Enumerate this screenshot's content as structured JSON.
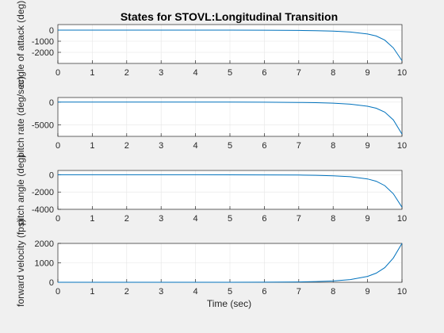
{
  "figure": {
    "title": "States for STOVL:Longitudinal Transition",
    "xlabel": "Time (sec)",
    "background_color": "#f0f0f0",
    "axes_color": "#ffffff",
    "line_color": "#0072bd"
  },
  "chart_data": [
    {
      "type": "line",
      "title": "States for STOVL:Longitudinal Transition",
      "xlabel": "",
      "ylabel": "angle of attack (deg)",
      "xlim": [
        0,
        10
      ],
      "ylim": [
        -3000,
        500
      ],
      "xticks": [
        "0",
        "1",
        "2",
        "3",
        "4",
        "5",
        "6",
        "7",
        "8",
        "9",
        "10"
      ],
      "yticks": [
        {
          "v": 0,
          "label": "0"
        },
        {
          "v": -1000,
          "label": "-1000"
        },
        {
          "v": -2000,
          "label": "-2000"
        }
      ],
      "grid": true,
      "series": [
        {
          "x": [
            0,
            1,
            2,
            3,
            4,
            5,
            6,
            7,
            7.5,
            8,
            8.5,
            9,
            9.25,
            9.5,
            9.75,
            10
          ],
          "y": [
            0,
            0,
            0,
            0,
            0,
            -2,
            -8,
            -25,
            -50,
            -90,
            -170,
            -350,
            -530,
            -900,
            -1600,
            -2750
          ]
        }
      ]
    },
    {
      "type": "line",
      "xlabel": "",
      "ylabel": "pitch rate (deg/sec)",
      "xlim": [
        0,
        10
      ],
      "ylim": [
        -7500,
        1000
      ],
      "xticks": [
        "0",
        "1",
        "2",
        "3",
        "4",
        "5",
        "6",
        "7",
        "8",
        "9",
        "10"
      ],
      "yticks": [
        {
          "v": 0,
          "label": "0"
        },
        {
          "v": -5000,
          "label": "-5000"
        }
      ],
      "grid": true,
      "series": [
        {
          "x": [
            0,
            1,
            2,
            3,
            4,
            5,
            6,
            7,
            7.5,
            8,
            8.5,
            9,
            9.25,
            9.5,
            9.75,
            10
          ],
          "y": [
            0,
            0,
            0,
            0,
            0,
            -5,
            -20,
            -70,
            -130,
            -240,
            -450,
            -900,
            -1350,
            -2200,
            -3900,
            -7000
          ]
        }
      ]
    },
    {
      "type": "line",
      "xlabel": "",
      "ylabel": "pitch angle (deg)",
      "xlim": [
        0,
        10
      ],
      "ylim": [
        -4000,
        500
      ],
      "xticks": [
        "0",
        "1",
        "2",
        "3",
        "4",
        "5",
        "6",
        "7",
        "8",
        "9",
        "10"
      ],
      "yticks": [
        {
          "v": 0,
          "label": "0"
        },
        {
          "v": -2000,
          "label": "-2000"
        },
        {
          "v": -4000,
          "label": "-4000"
        }
      ],
      "grid": true,
      "series": [
        {
          "x": [
            0,
            1,
            2,
            3,
            4,
            5,
            6,
            7,
            7.5,
            8,
            8.5,
            9,
            9.25,
            9.5,
            9.75,
            10
          ],
          "y": [
            0,
            0,
            0,
            0,
            0,
            -3,
            -10,
            -30,
            -60,
            -120,
            -230,
            -480,
            -750,
            -1250,
            -2200,
            -3750
          ]
        }
      ]
    },
    {
      "type": "line",
      "xlabel": "Time (sec)",
      "ylabel": "forward velocity (fps)",
      "xlim": [
        0,
        10
      ],
      "ylim": [
        0,
        2000
      ],
      "xticks": [
        "0",
        "1",
        "2",
        "3",
        "4",
        "5",
        "6",
        "7",
        "8",
        "9",
        "10"
      ],
      "yticks": [
        {
          "v": 0,
          "label": "0"
        },
        {
          "v": 1000,
          "label": "1000"
        },
        {
          "v": 2000,
          "label": "2000"
        }
      ],
      "grid": true,
      "series": [
        {
          "x": [
            0,
            1,
            2,
            3,
            4,
            5,
            6,
            6.5,
            7,
            7.5,
            8,
            8.5,
            9,
            9.25,
            9.5,
            9.75,
            10
          ],
          "y": [
            0,
            0,
            0,
            0,
            0,
            2,
            6,
            10,
            18,
            35,
            65,
            140,
            300,
            470,
            750,
            1250,
            2000
          ]
        }
      ]
    }
  ]
}
